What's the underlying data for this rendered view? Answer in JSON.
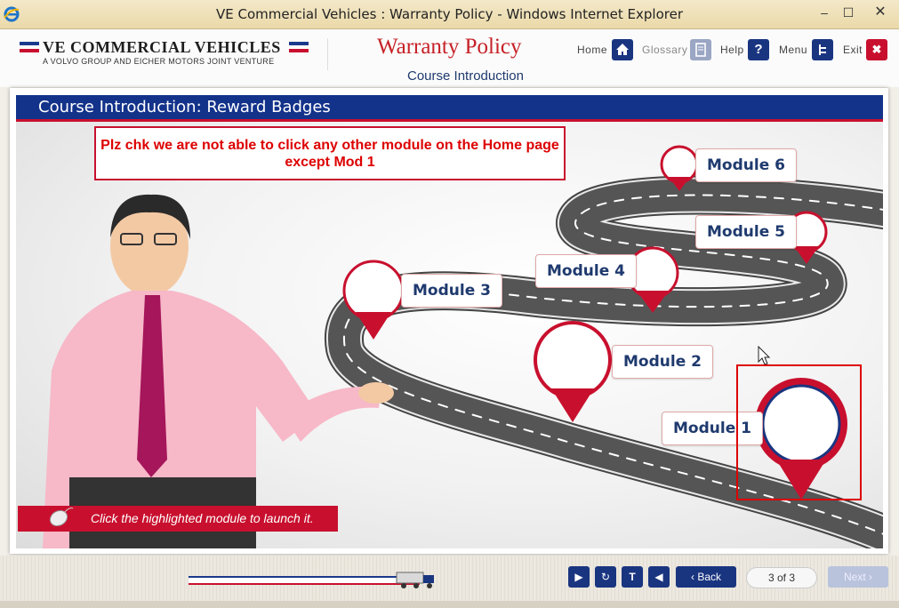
{
  "window": {
    "title": "VE Commercial Vehicles : Warranty Policy - Windows Internet Explorer",
    "controls": {
      "minimize": "–",
      "maximize": "☐",
      "close": "✕"
    }
  },
  "header": {
    "logo_name": "VE COMMERCIAL VEHICLES",
    "logo_tagline": "A VOLVO GROUP AND EICHER MOTORS JOINT VENTURE",
    "course_title": "Warranty Policy",
    "course_subtitle": "Course Introduction",
    "nav": [
      {
        "label": "Home",
        "icon": "home-icon"
      },
      {
        "label": "Glossary",
        "icon": "book-icon"
      },
      {
        "label": "Help",
        "icon": "question-icon"
      },
      {
        "label": "Menu",
        "icon": "menu-icon"
      },
      {
        "label": "Exit",
        "icon": "close-icon"
      }
    ]
  },
  "slide": {
    "title": "Course Introduction: Reward Badges",
    "note_line1": "Plz chk we are not able to click any other module on the Home page",
    "note_line2": "except Mod 1",
    "modules": [
      "Module 1",
      "Module 2",
      "Module 3",
      "Module 4",
      "Module 5",
      "Module 6"
    ],
    "hint": "Click the highlighted module to launch it."
  },
  "footer": {
    "back_label": "Back",
    "next_label": "Next",
    "page_counter": "3 of 3",
    "icons": [
      "play-icon",
      "replay-icon",
      "transcript-icon",
      "audio-icon"
    ]
  },
  "colors": {
    "brand_blue": "#13328a",
    "brand_red": "#c8102e"
  }
}
